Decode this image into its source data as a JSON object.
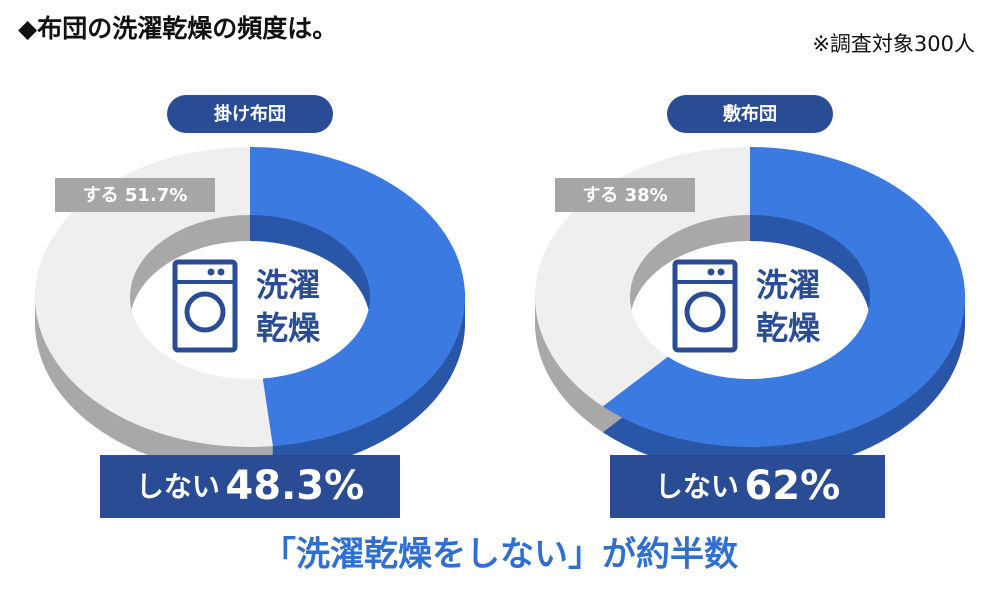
{
  "title": "◆布団の洗濯乾燥の頻度は。",
  "note": "※調査対象300人",
  "conclusion": "「洗濯乾燥をしない」が約半数",
  "chart_data": [
    {
      "type": "pie",
      "title": "掛け布団",
      "center_text": [
        "洗濯",
        "乾燥"
      ],
      "categories": [
        "しない",
        "する"
      ],
      "values": [
        48.3,
        51.7
      ],
      "value_labels": [
        "48.3%",
        "51.7%"
      ],
      "colors": [
        "#3b7ae0",
        "#efefef"
      ]
    },
    {
      "type": "pie",
      "title": "敷布団",
      "center_text": [
        "洗濯",
        "乾燥"
      ],
      "categories": [
        "しない",
        "する"
      ],
      "values": [
        62,
        38
      ],
      "value_labels": [
        "62%",
        "38%"
      ],
      "colors": [
        "#3b7ae0",
        "#efefef"
      ]
    }
  ]
}
